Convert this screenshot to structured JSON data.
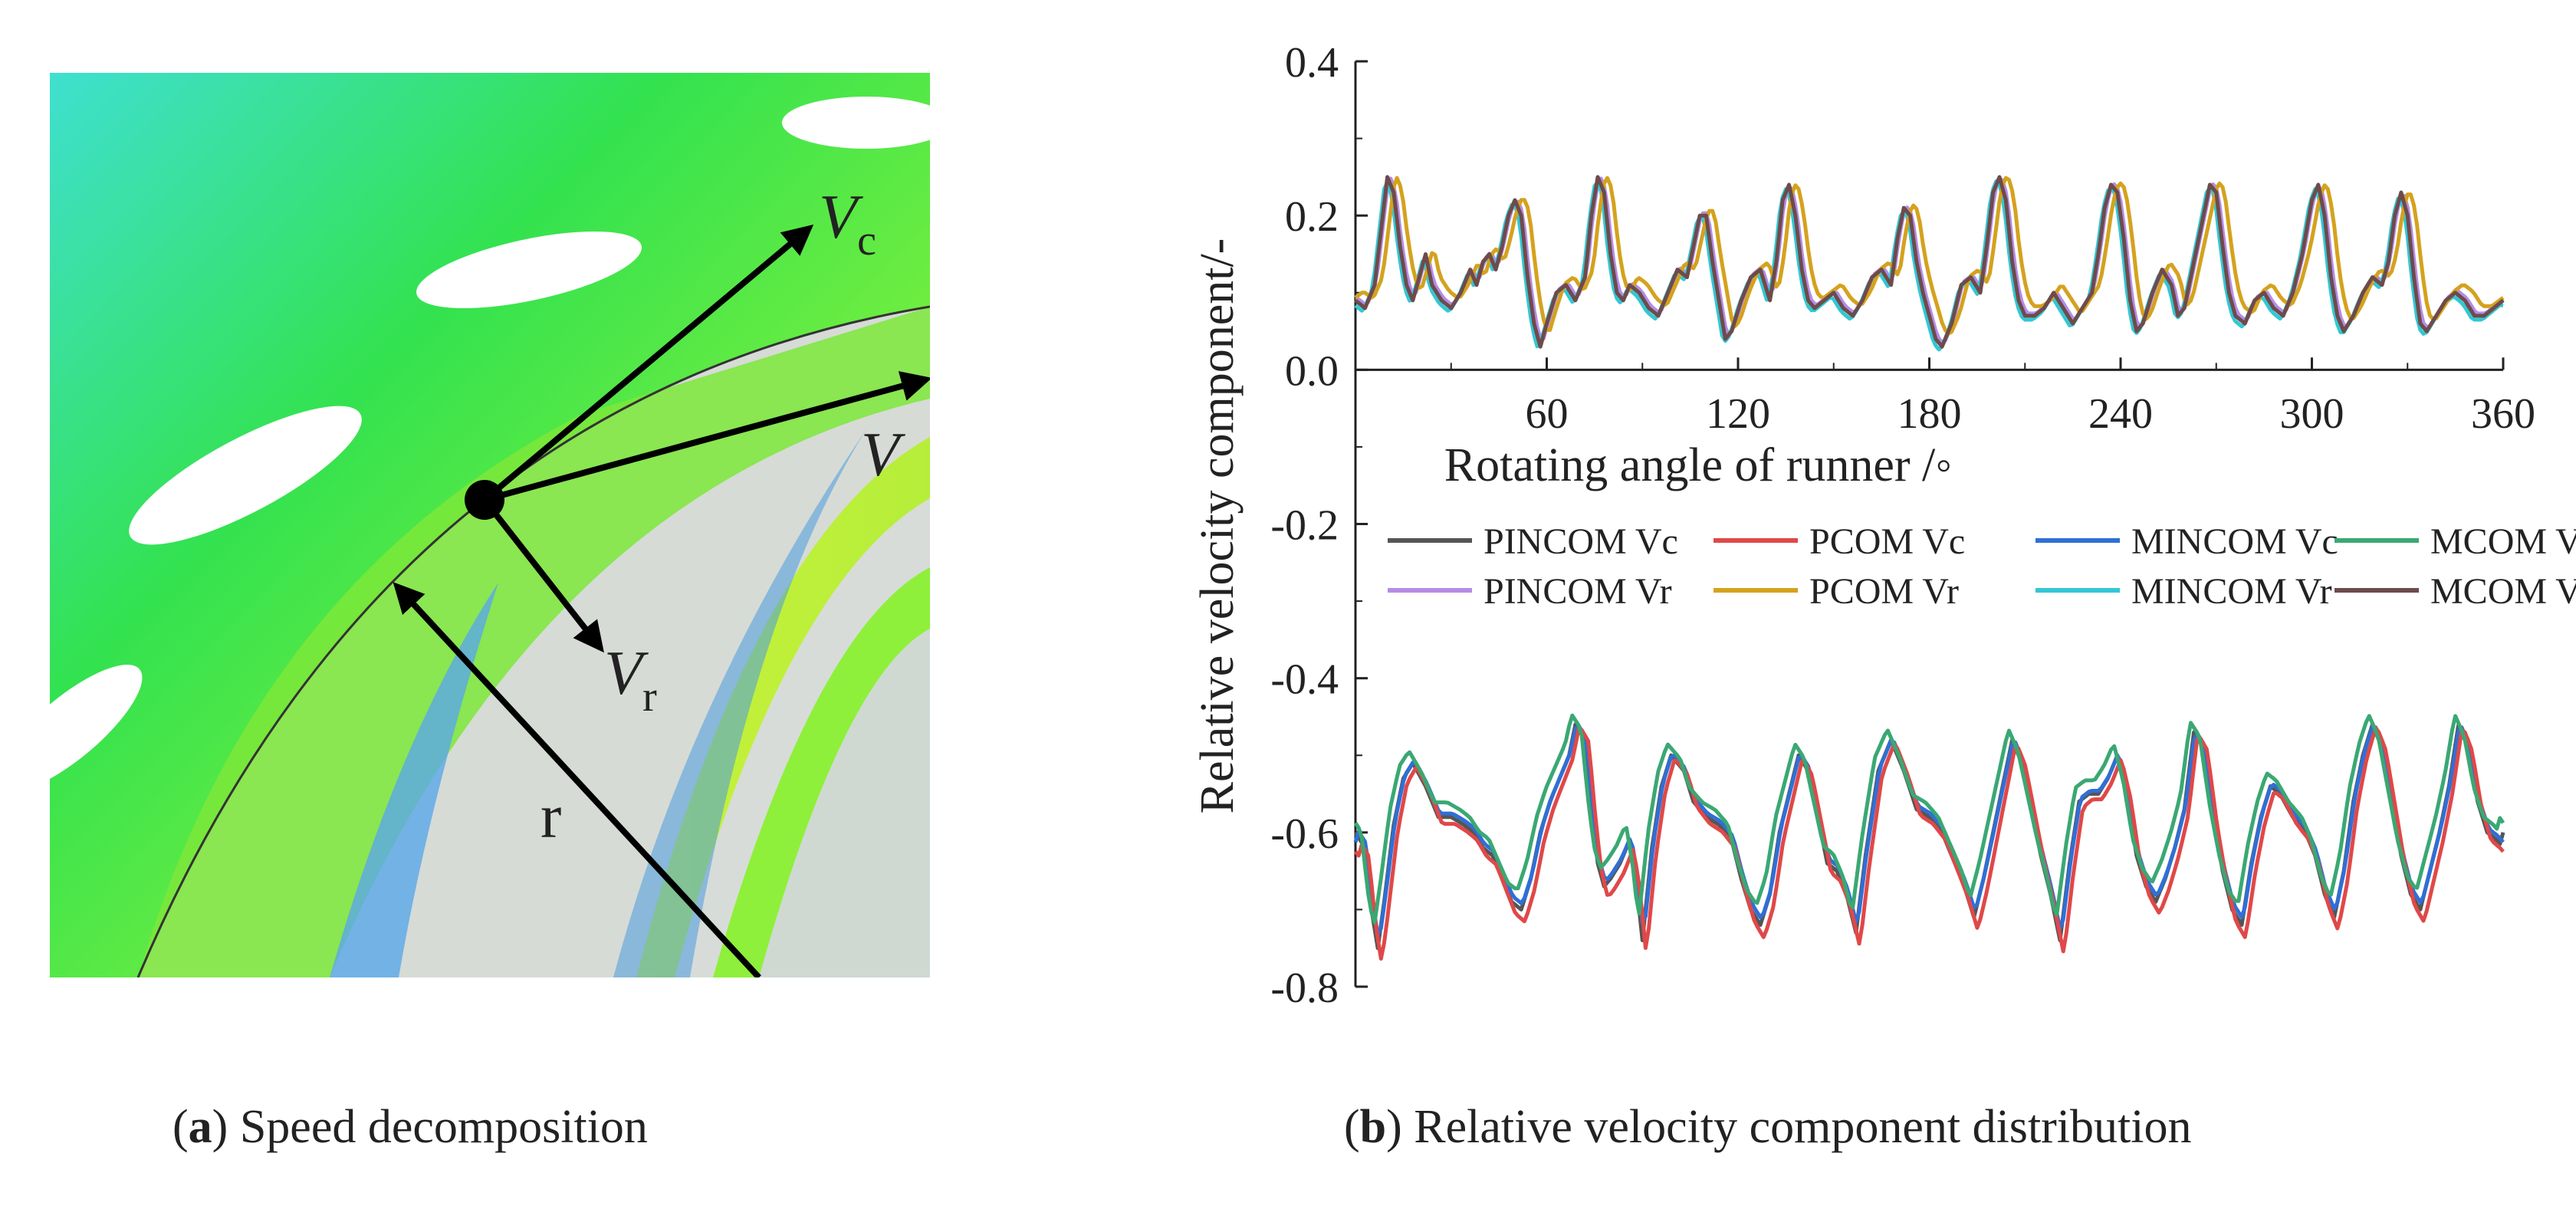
{
  "panel_a": {
    "labels": {
      "vc_main": "V",
      "vc_sub": "c",
      "v": "V",
      "vr_main": "V",
      "vr_sub": "r",
      "r": "r"
    },
    "caption": {
      "letter": "a",
      "text": "Speed decomposition"
    }
  },
  "panel_b": {
    "caption": {
      "letter": "b",
      "text": "Relative velocity component distribution"
    }
  },
  "chart_data": {
    "type": "line",
    "title": "",
    "xlabel": "Rotating angle of runner /◦",
    "ylabel": "Relative velocity component/-",
    "xlim": [
      0,
      360
    ],
    "ylim": [
      -0.8,
      0.4
    ],
    "x_ticks": [
      60,
      120,
      180,
      240,
      300,
      360
    ],
    "x_tick_labels": [
      "60",
      "120",
      "180",
      "240",
      "300",
      "360"
    ],
    "y_ticks": [
      0.4,
      0.2,
      0.0,
      -0.2,
      -0.4,
      -0.6,
      -0.8
    ],
    "y_tick_labels": [
      "0.4",
      "0.2",
      "0.0",
      "-0.2",
      "-0.4",
      "-0.6",
      "-0.8"
    ],
    "legend_position": "middle",
    "base_vc": [
      [
        0,
        -0.6
      ],
      [
        3,
        -0.62
      ],
      [
        5,
        -0.7
      ],
      [
        7,
        -0.75
      ],
      [
        9,
        -0.69
      ],
      [
        12,
        -0.59
      ],
      [
        15,
        -0.53
      ],
      [
        18,
        -0.51
      ],
      [
        22,
        -0.54
      ],
      [
        26,
        -0.58
      ],
      [
        30,
        -0.58
      ],
      [
        34,
        -0.59
      ],
      [
        37,
        -0.6
      ],
      [
        40,
        -0.62
      ],
      [
        43,
        -0.63
      ],
      [
        46,
        -0.66
      ],
      [
        49,
        -0.69
      ],
      [
        52,
        -0.7
      ],
      [
        55,
        -0.66
      ],
      [
        58,
        -0.6
      ],
      [
        61,
        -0.56
      ],
      [
        64,
        -0.53
      ],
      [
        67,
        -0.5
      ],
      [
        69,
        -0.46
      ],
      [
        72,
        -0.48
      ],
      [
        74,
        -0.57
      ],
      [
        76,
        -0.64
      ],
      [
        78,
        -0.67
      ],
      [
        80,
        -0.66
      ],
      [
        83,
        -0.64
      ],
      [
        86,
        -0.61
      ],
      [
        88,
        -0.66
      ],
      [
        90,
        -0.74
      ],
      [
        93,
        -0.62
      ],
      [
        96,
        -0.54
      ],
      [
        99,
        -0.5
      ],
      [
        103,
        -0.52
      ],
      [
        106,
        -0.56
      ],
      [
        110,
        -0.58
      ],
      [
        114,
        -0.59
      ],
      [
        118,
        -0.61
      ],
      [
        121,
        -0.66
      ],
      [
        124,
        -0.7
      ],
      [
        127,
        -0.72
      ],
      [
        130,
        -0.68
      ],
      [
        133,
        -0.6
      ],
      [
        136,
        -0.55
      ],
      [
        139,
        -0.5
      ],
      [
        142,
        -0.52
      ],
      [
        145,
        -0.58
      ],
      [
        148,
        -0.64
      ],
      [
        151,
        -0.65
      ],
      [
        154,
        -0.68
      ],
      [
        157,
        -0.73
      ],
      [
        160,
        -0.63
      ],
      [
        164,
        -0.52
      ],
      [
        168,
        -0.48
      ],
      [
        172,
        -0.52
      ],
      [
        176,
        -0.57
      ],
      [
        180,
        -0.58
      ],
      [
        184,
        -0.6
      ],
      [
        188,
        -0.64
      ],
      [
        191,
        -0.67
      ],
      [
        194,
        -0.71
      ],
      [
        197,
        -0.66
      ],
      [
        200,
        -0.6
      ],
      [
        203,
        -0.54
      ],
      [
        206,
        -0.48
      ],
      [
        209,
        -0.51
      ],
      [
        212,
        -0.57
      ],
      [
        215,
        -0.63
      ],
      [
        218,
        -0.68
      ],
      [
        221,
        -0.74
      ],
      [
        224,
        -0.64
      ],
      [
        227,
        -0.56
      ],
      [
        230,
        -0.55
      ],
      [
        233,
        -0.55
      ],
      [
        236,
        -0.53
      ],
      [
        239,
        -0.5
      ],
      [
        242,
        -0.55
      ],
      [
        245,
        -0.63
      ],
      [
        248,
        -0.67
      ],
      [
        251,
        -0.69
      ],
      [
        254,
        -0.66
      ],
      [
        257,
        -0.62
      ],
      [
        260,
        -0.57
      ],
      [
        263,
        -0.47
      ],
      [
        266,
        -0.49
      ],
      [
        269,
        -0.58
      ],
      [
        272,
        -0.65
      ],
      [
        275,
        -0.7
      ],
      [
        278,
        -0.72
      ],
      [
        281,
        -0.64
      ],
      [
        284,
        -0.58
      ],
      [
        287,
        -0.54
      ],
      [
        290,
        -0.55
      ],
      [
        294,
        -0.58
      ],
      [
        298,
        -0.6
      ],
      [
        301,
        -0.63
      ],
      [
        304,
        -0.68
      ],
      [
        307,
        -0.71
      ],
      [
        310,
        -0.65
      ],
      [
        313,
        -0.56
      ],
      [
        316,
        -0.5
      ],
      [
        319,
        -0.46
      ],
      [
        322,
        -0.49
      ],
      [
        325,
        -0.56
      ],
      [
        328,
        -0.63
      ],
      [
        331,
        -0.68
      ],
      [
        334,
        -0.7
      ],
      [
        337,
        -0.65
      ],
      [
        340,
        -0.6
      ],
      [
        343,
        -0.54
      ],
      [
        346,
        -0.46
      ],
      [
        349,
        -0.49
      ],
      [
        352,
        -0.56
      ],
      [
        355,
        -0.6
      ],
      [
        358,
        -0.61
      ],
      [
        360,
        -0.62
      ]
    ],
    "base_vr": [
      [
        0,
        0.09
      ],
      [
        3,
        0.08
      ],
      [
        6,
        0.11
      ],
      [
        8,
        0.18
      ],
      [
        10,
        0.25
      ],
      [
        12,
        0.23
      ],
      [
        14,
        0.16
      ],
      [
        16,
        0.11
      ],
      [
        18,
        0.09
      ],
      [
        20,
        0.12
      ],
      [
        22,
        0.15
      ],
      [
        24,
        0.11
      ],
      [
        27,
        0.09
      ],
      [
        30,
        0.08
      ],
      [
        33,
        0.1
      ],
      [
        36,
        0.13
      ],
      [
        38,
        0.11
      ],
      [
        40,
        0.14
      ],
      [
        42,
        0.15
      ],
      [
        44,
        0.13
      ],
      [
        46,
        0.16
      ],
      [
        48,
        0.2
      ],
      [
        50,
        0.22
      ],
      [
        52,
        0.2
      ],
      [
        54,
        0.12
      ],
      [
        56,
        0.06
      ],
      [
        58,
        0.03
      ],
      [
        60,
        0.06
      ],
      [
        63,
        0.1
      ],
      [
        66,
        0.11
      ],
      [
        69,
        0.09
      ],
      [
        72,
        0.12
      ],
      [
        74,
        0.2
      ],
      [
        76,
        0.25
      ],
      [
        78,
        0.23
      ],
      [
        80,
        0.15
      ],
      [
        82,
        0.1
      ],
      [
        84,
        0.09
      ],
      [
        86,
        0.11
      ],
      [
        89,
        0.1
      ],
      [
        92,
        0.08
      ],
      [
        95,
        0.07
      ],
      [
        98,
        0.1
      ],
      [
        101,
        0.13
      ],
      [
        104,
        0.12
      ],
      [
        106,
        0.16
      ],
      [
        108,
        0.2
      ],
      [
        110,
        0.2
      ],
      [
        112,
        0.14
      ],
      [
        114,
        0.09
      ],
      [
        116,
        0.04
      ],
      [
        118,
        0.05
      ],
      [
        121,
        0.09
      ],
      [
        124,
        0.12
      ],
      [
        127,
        0.13
      ],
      [
        130,
        0.09
      ],
      [
        132,
        0.14
      ],
      [
        134,
        0.22
      ],
      [
        136,
        0.24
      ],
      [
        138,
        0.2
      ],
      [
        140,
        0.13
      ],
      [
        142,
        0.09
      ],
      [
        144,
        0.08
      ],
      [
        147,
        0.09
      ],
      [
        150,
        0.1
      ],
      [
        153,
        0.08
      ],
      [
        156,
        0.07
      ],
      [
        159,
        0.09
      ],
      [
        162,
        0.12
      ],
      [
        165,
        0.13
      ],
      [
        168,
        0.11
      ],
      [
        170,
        0.17
      ],
      [
        172,
        0.21
      ],
      [
        174,
        0.2
      ],
      [
        176,
        0.14
      ],
      [
        178,
        0.1
      ],
      [
        180,
        0.07
      ],
      [
        182,
        0.04
      ],
      [
        184,
        0.03
      ],
      [
        187,
        0.06
      ],
      [
        190,
        0.11
      ],
      [
        193,
        0.12
      ],
      [
        196,
        0.1
      ],
      [
        198,
        0.16
      ],
      [
        200,
        0.23
      ],
      [
        202,
        0.25
      ],
      [
        204,
        0.22
      ],
      [
        206,
        0.14
      ],
      [
        208,
        0.09
      ],
      [
        210,
        0.07
      ],
      [
        213,
        0.07
      ],
      [
        216,
        0.08
      ],
      [
        219,
        0.1
      ],
      [
        222,
        0.08
      ],
      [
        225,
        0.06
      ],
      [
        228,
        0.08
      ],
      [
        231,
        0.1
      ],
      [
        233,
        0.15
      ],
      [
        235,
        0.21
      ],
      [
        237,
        0.24
      ],
      [
        239,
        0.23
      ],
      [
        241,
        0.17
      ],
      [
        243,
        0.09
      ],
      [
        245,
        0.05
      ],
      [
        247,
        0.06
      ],
      [
        250,
        0.1
      ],
      [
        253,
        0.13
      ],
      [
        256,
        0.11
      ],
      [
        258,
        0.07
      ],
      [
        260,
        0.08
      ],
      [
        263,
        0.14
      ],
      [
        266,
        0.2
      ],
      [
        268,
        0.24
      ],
      [
        270,
        0.23
      ],
      [
        272,
        0.16
      ],
      [
        274,
        0.1
      ],
      [
        276,
        0.07
      ],
      [
        279,
        0.06
      ],
      [
        282,
        0.09
      ],
      [
        285,
        0.1
      ],
      [
        288,
        0.08
      ],
      [
        291,
        0.07
      ],
      [
        294,
        0.1
      ],
      [
        297,
        0.15
      ],
      [
        300,
        0.22
      ],
      [
        302,
        0.24
      ],
      [
        304,
        0.2
      ],
      [
        306,
        0.12
      ],
      [
        308,
        0.07
      ],
      [
        310,
        0.05
      ],
      [
        313,
        0.07
      ],
      [
        316,
        0.1
      ],
      [
        319,
        0.12
      ],
      [
        322,
        0.11
      ],
      [
        324,
        0.14
      ],
      [
        326,
        0.2
      ],
      [
        328,
        0.23
      ],
      [
        330,
        0.2
      ],
      [
        332,
        0.12
      ],
      [
        334,
        0.06
      ],
      [
        336,
        0.05
      ],
      [
        339,
        0.07
      ],
      [
        342,
        0.09
      ],
      [
        345,
        0.1
      ],
      [
        348,
        0.09
      ],
      [
        351,
        0.07
      ],
      [
        354,
        0.07
      ],
      [
        357,
        0.08
      ],
      [
        360,
        0.09
      ]
    ],
    "series": [
      {
        "name": "PINCOM Vc",
        "color": "#555555",
        "group": "vc",
        "offset": 0.0,
        "phase": 0.0,
        "amp": 1.0
      },
      {
        "name": "PCOM Vc",
        "color": "#e04848",
        "group": "vc",
        "offset": -0.01,
        "phase": 1.2,
        "amp": 1.06
      },
      {
        "name": "MINCOM Vc",
        "color": "#2f6fd6",
        "group": "vc",
        "offset": 0.005,
        "phase": 0.4,
        "amp": 0.98
      },
      {
        "name": "MCOM Vc",
        "color": "#3aa873",
        "group": "vc",
        "offset": 0.02,
        "phase": -1.2,
        "amp": 0.95
      },
      {
        "name": "PINCOM Vr",
        "color": "#b58ce6",
        "group": "vr",
        "offset": 0.003,
        "phase": 0.5,
        "amp": 1.0
      },
      {
        "name": "PCOM Vr",
        "color": "#d4a21e",
        "group": "vr",
        "offset": 0.01,
        "phase": 2.5,
        "amp": 0.95
      },
      {
        "name": "MINCOM Vr",
        "color": "#33c7d4",
        "group": "vr",
        "offset": -0.004,
        "phase": -0.6,
        "amp": 1.02
      },
      {
        "name": "MCOM Vr",
        "color": "#6e4b4b",
        "group": "vr",
        "offset": 0.0,
        "phase": 0.0,
        "amp": 1.0
      }
    ]
  }
}
